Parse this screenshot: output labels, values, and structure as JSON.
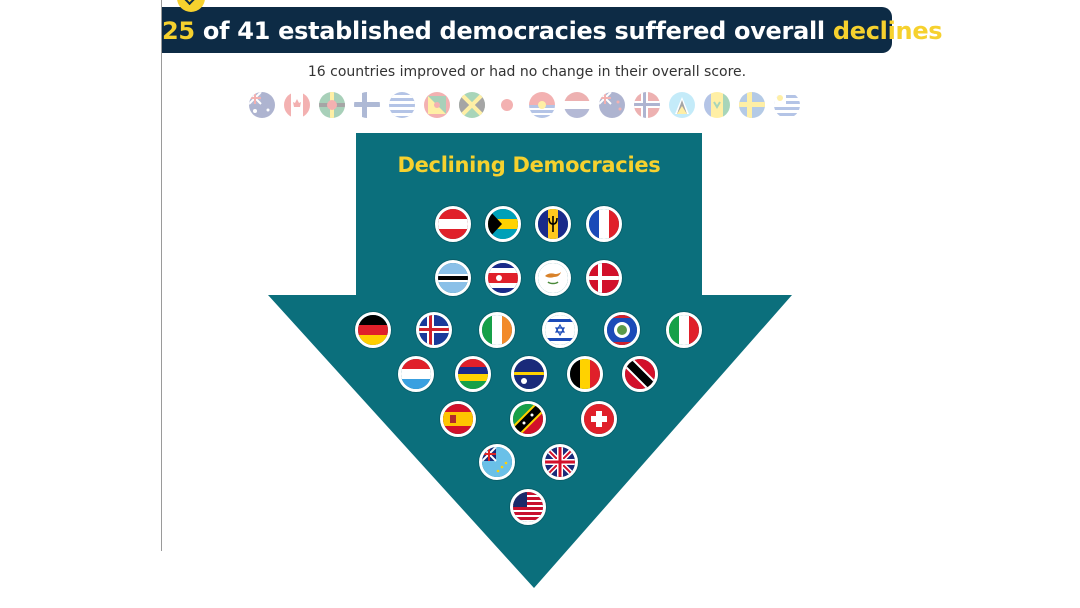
{
  "header": {
    "count": "25",
    "middle": "of 41 established democracies suffered overall",
    "highlight": "declines"
  },
  "subtitle": "16 countries improved or had no change in their overall score.",
  "arrow_title": "Declining Democracies",
  "colors": {
    "banner": "#0d2b45",
    "accent": "#f6d12e",
    "arrow": "#0b6f7c"
  },
  "improved_flags": [
    "australia-flag",
    "canada-flag",
    "dominica-flag",
    "finland-flag",
    "greece-flag",
    "grenada-flag",
    "jamaica-flag",
    "japan-flag",
    "kiribati-flag",
    "netherlands-flag",
    "new-zealand-flag",
    "norway-flag",
    "saint-lucia-flag",
    "saint-vincent-flag",
    "sweden-flag",
    "uruguay-flag"
  ],
  "declining_flags": [
    "austria-flag",
    "bahamas-flag",
    "barbados-flag",
    "france-flag",
    "botswana-flag",
    "costa-rica-flag",
    "cyprus-flag",
    "denmark-flag",
    "germany-flag",
    "iceland-flag",
    "ireland-flag",
    "israel-flag",
    "belize-flag",
    "italy-flag",
    "luxembourg-flag",
    "mauritius-flag",
    "nauru-flag",
    "belgium-flag",
    "trinidad-flag",
    "spain-flag",
    "saint-kitts-flag",
    "switzerland-flag",
    "tuvalu-flag",
    "united-kingdom-flag",
    "united-states-flag"
  ]
}
